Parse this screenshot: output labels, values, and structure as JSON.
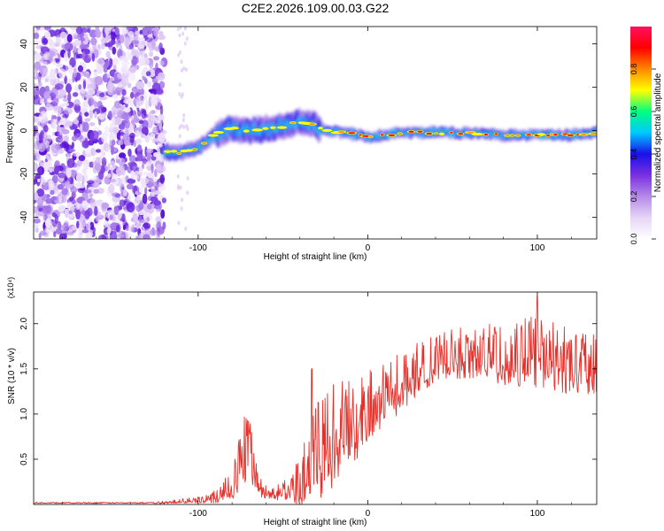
{
  "figure_title": "C2E2.2026.109.00.03.G22",
  "chart_data": [
    {
      "type": "heatmap",
      "title": "C2E2.2026.109.00.03.G22",
      "xlabel": "Height of straight line (km)",
      "ylabel": "Frequency (Hz)",
      "xlim": [
        -197,
        135
      ],
      "ylim": [
        -50,
        48
      ],
      "x_ticks": [
        -100,
        0,
        100
      ],
      "y_ticks": [
        40,
        20,
        0,
        -20,
        -40
      ],
      "colorbar": {
        "label": "Normalized spectral amplitude",
        "range": [
          0,
          1
        ],
        "ticks": [
          "0.0",
          "0.2",
          "0.4",
          "0.6",
          "0.8"
        ],
        "colors": [
          "#ffffff",
          "#e6d5f5",
          "#b58ae8",
          "#7a30e0",
          "#1a10e8",
          "#00c8ff",
          "#00ff80",
          "#ffff00",
          "#ff8800",
          "#ff0000",
          "#ff1060"
        ]
      },
      "noise_region_km": [
        -197,
        -120
      ],
      "ridge": {
        "x_km": [
          -120,
          -110,
          -100,
          -90,
          -80,
          -70,
          -60,
          -50,
          -40,
          -33,
          -25,
          -15,
          -5,
          0,
          10,
          20,
          40,
          60,
          80,
          100,
          120,
          135
        ],
        "freq_hz": [
          -10,
          -10,
          -8,
          -2,
          1,
          0,
          1,
          2,
          4,
          3,
          0,
          -1,
          -2,
          -3,
          -2,
          -1,
          -1,
          -1,
          -2,
          -2,
          -2,
          -1
        ]
      }
    },
    {
      "type": "line",
      "xlabel": "Height of straight line (km)",
      "ylabel": "SNR (10 * v/v)",
      "scale_label": "(x10⁴)",
      "xlim": [
        -197,
        135
      ],
      "ylim": [
        0,
        2.35
      ],
      "x_ticks": [
        -100,
        0,
        100
      ],
      "y_ticks": [
        0.5,
        1.0,
        1.5,
        2.0
      ],
      "y_tick_labels": [
        "0.5",
        "1.0",
        "1.5",
        "2.0"
      ],
      "color": "#e8302a",
      "envelope": {
        "x_km": [
          -197,
          -130,
          -120,
          -100,
          -90,
          -80,
          -75,
          -72,
          -68,
          -65,
          -62,
          -55,
          -45,
          -38,
          -33,
          -28,
          -22,
          -18,
          -12,
          -5,
          0,
          10,
          20,
          30,
          40,
          60,
          80,
          100,
          110,
          120,
          135
        ],
        "base": [
          0.01,
          0.01,
          0.02,
          0.04,
          0.06,
          0.18,
          0.35,
          0.5,
          0.4,
          0.25,
          0.12,
          0.1,
          0.12,
          0.2,
          0.3,
          0.45,
          0.55,
          0.65,
          0.75,
          0.8,
          0.95,
          1.1,
          1.25,
          1.4,
          1.55,
          1.6,
          1.55,
          1.55,
          1.5,
          1.45,
          1.45
        ],
        "amp": [
          0.01,
          0.01,
          0.02,
          0.05,
          0.1,
          0.25,
          0.45,
          0.6,
          0.4,
          0.2,
          0.12,
          0.1,
          0.2,
          0.45,
          0.7,
          0.8,
          0.8,
          0.7,
          0.7,
          0.65,
          0.55,
          0.45,
          0.45,
          0.4,
          0.35,
          0.4,
          0.45,
          0.55,
          0.55,
          0.5,
          0.45
        ]
      },
      "peaks": [
        {
          "x": -71,
          "y": 0.93
        },
        {
          "x": -33,
          "y": 1.5
        },
        {
          "x": 100,
          "y": 2.3
        }
      ]
    }
  ]
}
